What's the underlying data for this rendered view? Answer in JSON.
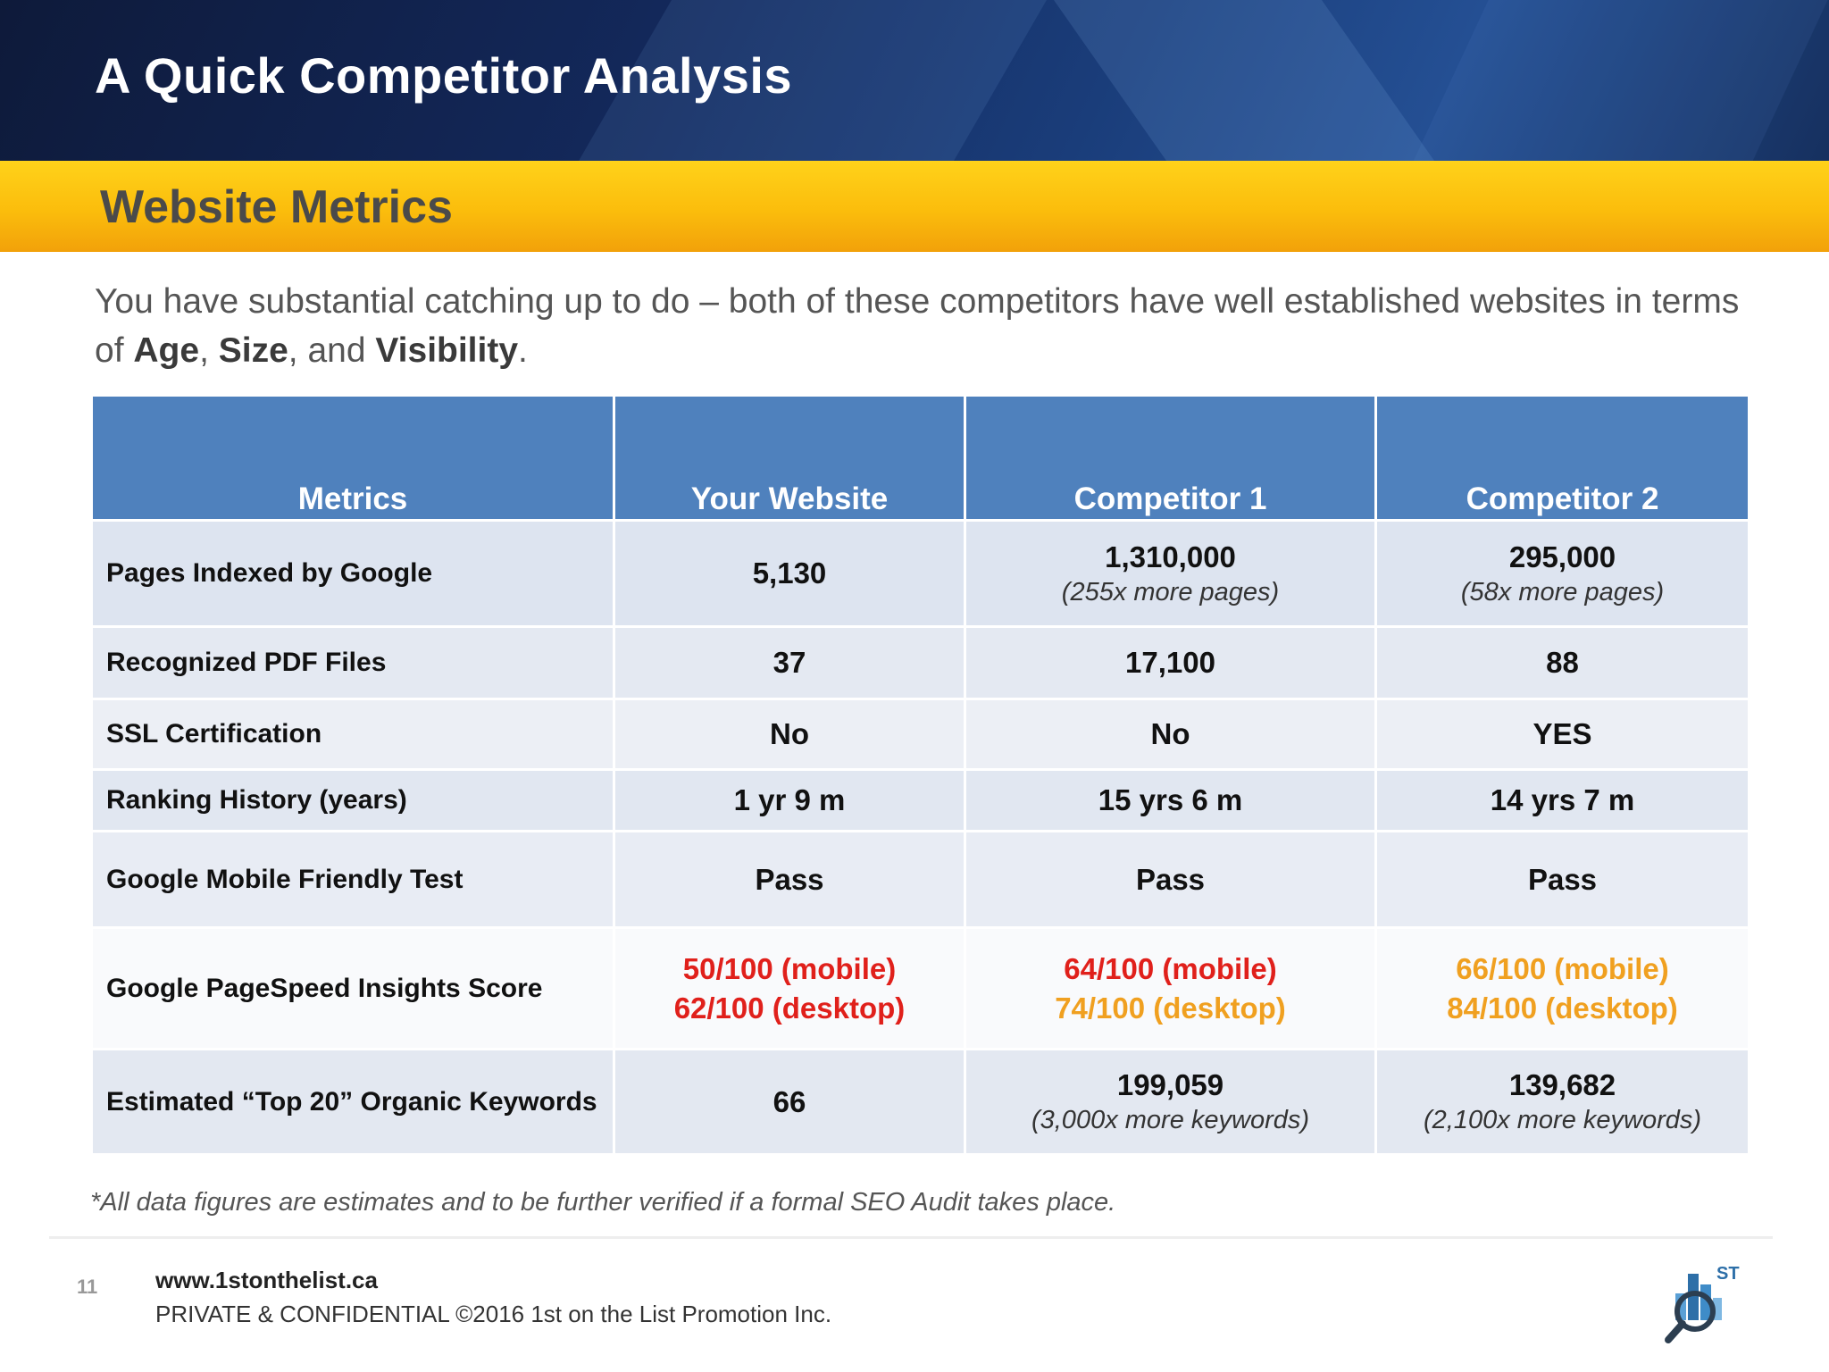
{
  "header": {
    "title": "A Quick Competitor Analysis"
  },
  "section": {
    "title": "Website Metrics"
  },
  "intro": {
    "text_a": "You have substantial catching up to do – both of these competitors have well established websites in terms of ",
    "age": "Age",
    "comma1": ", ",
    "size": "Size",
    "and": ", and ",
    "visibility": "Visibility",
    "period": "."
  },
  "table": {
    "headers": [
      "Metrics",
      "Your Website",
      "Competitor 1",
      "Competitor 2"
    ],
    "rows": [
      {
        "label": "Pages Indexed by Google",
        "cells": [
          {
            "main": "5,130"
          },
          {
            "main": "1,310,000",
            "sub": "(255x more pages)"
          },
          {
            "main": "295,000",
            "sub": "(58x more pages)"
          }
        ]
      },
      {
        "label": "Recognized PDF Files",
        "cells": [
          {
            "main": "37"
          },
          {
            "main": "17,100"
          },
          {
            "main": "88"
          }
        ]
      },
      {
        "label": "SSL Certification",
        "cells": [
          {
            "main": "No"
          },
          {
            "main": "No"
          },
          {
            "main": "YES"
          }
        ]
      },
      {
        "label": "Ranking History (years)",
        "cells": [
          {
            "main": "1 yr 9 m"
          },
          {
            "main": "15 yrs 6 m"
          },
          {
            "main": "14 yrs 7 m"
          }
        ]
      },
      {
        "label": "Google Mobile Friendly Test",
        "cells": [
          {
            "main": "Pass"
          },
          {
            "main": "Pass"
          },
          {
            "main": "Pass"
          }
        ]
      },
      {
        "label": "Google PageSpeed Insights Score",
        "cells": [
          {
            "mobile": "50/100 (mobile)",
            "desktop": "62/100 (desktop)"
          },
          {
            "mobile": "64/100 (mobile)",
            "desktop": "74/100 (desktop)"
          },
          {
            "mobile": "66/100 (mobile)",
            "desktop": "84/100 (desktop)"
          }
        ]
      },
      {
        "label": "Estimated “Top 20” Organic Keywords",
        "cells": [
          {
            "main": "66"
          },
          {
            "main": "199,059",
            "sub": "(3,000x more keywords)"
          },
          {
            "main": "139,682",
            "sub": "(2,100x more keywords)"
          }
        ]
      }
    ]
  },
  "score_colors": {
    "poor": "#e0201b",
    "average": "#f0a020"
  },
  "footnote": "*All data figures are estimates and to be further verified if a formal SEO Audit takes place.",
  "footer": {
    "page_number": "11",
    "website": "www.1stonthelist.ca",
    "confidential": "PRIVATE & CONFIDENTIAL ©2016 1st on the List Promotion Inc.",
    "logo_text": "ST"
  }
}
